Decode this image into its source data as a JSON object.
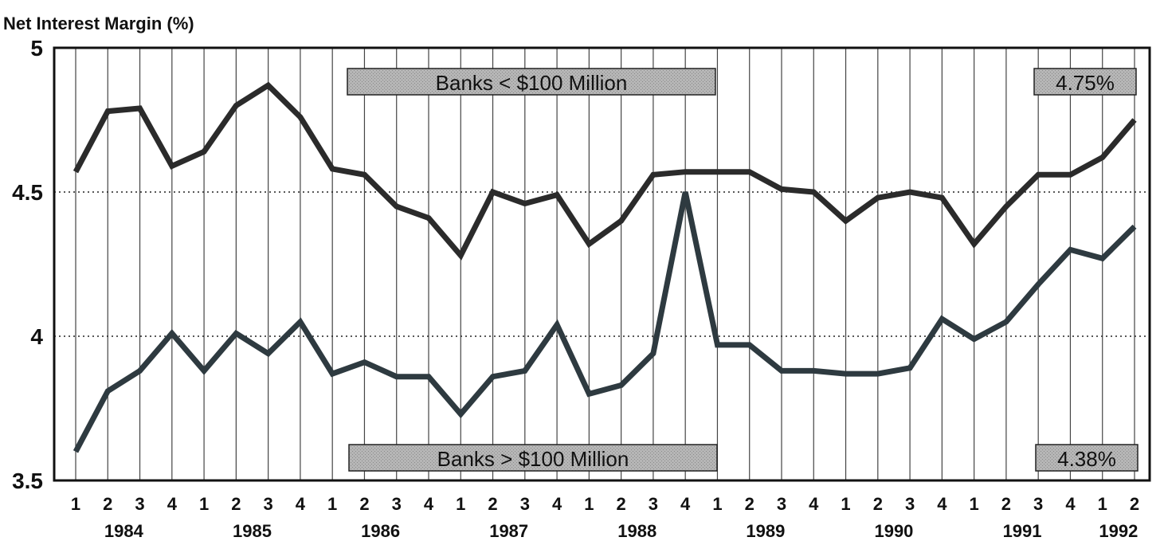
{
  "chart_data": {
    "type": "line",
    "ylabel": "Net Interest Margin (%)",
    "ylim": [
      3.5,
      5
    ],
    "yticks": [
      "3.5",
      "4",
      "4.5",
      "5"
    ],
    "dotted_gridlines_at": [
      4,
      4.5
    ],
    "vertical_grid": true,
    "x": [
      "1",
      "2",
      "3",
      "4",
      "1",
      "2",
      "3",
      "4",
      "1",
      "2",
      "3",
      "4",
      "1",
      "2",
      "3",
      "4",
      "1",
      "2",
      "3",
      "4",
      "1",
      "2",
      "3",
      "4",
      "1",
      "2",
      "3",
      "4",
      "1",
      "2",
      "3",
      "4",
      "1",
      "2"
    ],
    "year_labels": [
      "1984",
      "1985",
      "1986",
      "1987",
      "1988",
      "1989",
      "1990",
      "1991",
      "1992"
    ],
    "series": [
      {
        "name": "Banks < $100 Million",
        "end_label": "4.75%",
        "color": "#2b2b2b",
        "values": [
          4.57,
          4.78,
          4.79,
          4.59,
          4.64,
          4.8,
          4.87,
          4.76,
          4.58,
          4.56,
          4.45,
          4.41,
          4.28,
          4.5,
          4.46,
          4.49,
          4.32,
          4.4,
          4.56,
          4.57,
          4.57,
          4.57,
          4.51,
          4.5,
          4.4,
          4.48,
          4.5,
          4.48,
          4.32,
          4.45,
          4.56,
          4.56,
          4.62,
          4.75
        ]
      },
      {
        "name": "Banks > $100 Million",
        "end_label": "4.38%",
        "color": "#2e3a40",
        "values": [
          3.6,
          3.81,
          3.88,
          4.01,
          3.88,
          4.01,
          3.94,
          4.05,
          3.87,
          3.91,
          3.86,
          3.86,
          3.73,
          3.86,
          3.88,
          4.04,
          3.8,
          3.83,
          3.94,
          4.5,
          3.97,
          3.97,
          3.88,
          3.88,
          3.87,
          3.87,
          3.89,
          4.06,
          3.99,
          4.05,
          4.18,
          4.3,
          4.27,
          4.38
        ]
      }
    ]
  },
  "colors": {
    "label_box_fill": "#ababab",
    "label_box_fill_light": "#bbbbbb",
    "gridline": "#444444"
  }
}
